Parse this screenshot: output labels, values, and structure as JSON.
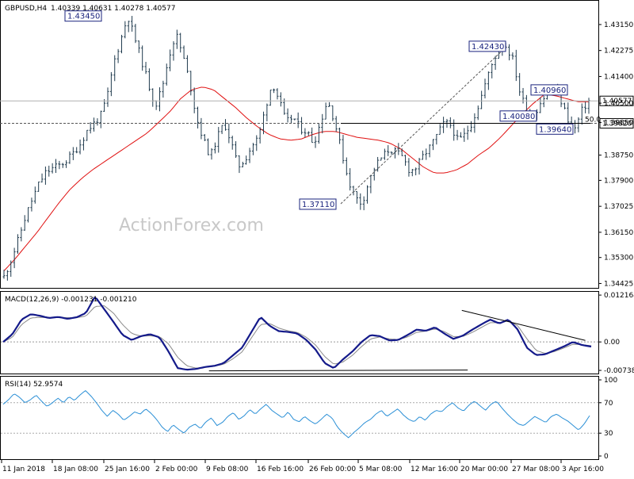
{
  "chart_data": [
    {
      "type": "candlestick",
      "title": "GBPUSD,H4",
      "ohlc_text": "1.40339 1.40631 1.40278 1.40577",
      "ylim": [
        1.3425,
        1.4395
      ],
      "y_ticks": [
        "1.43150",
        "1.42275",
        "1.41400",
        "1.40500",
        "1.39850",
        "1.38750",
        "1.37900",
        "1.37025",
        "1.36150",
        "1.35300",
        "1.34425"
      ],
      "y_tick_values": [
        1.4315,
        1.42275,
        1.414,
        1.405,
        1.3985,
        1.3875,
        1.379,
        1.37025,
        1.3615,
        1.353,
        1.34425
      ],
      "x_labels": [
        "11 Jan 2018",
        "18 Jan 08:00",
        "25 Jan 16:00",
        "2 Feb 00:00",
        "9 Feb 08:00",
        "16 Feb 16:00",
        "26 Feb 00:00",
        "5 Mar 08:00",
        "12 Mar 16:00",
        "20 Mar 00:00",
        "27 Mar 08:00",
        "3 Apr 16:00"
      ],
      "current_price": "1.40577",
      "current_price_value": 1.40577,
      "horizontal_level": "1.39820",
      "horizontal_level_value": 1.3982,
      "fib_label": "50.0",
      "annotations": [
        {
          "text": "1.43450",
          "value": 1.4345
        },
        {
          "text": "1.42430",
          "value": 1.4243
        },
        {
          "text": "1.40960",
          "value": 1.4096
        },
        {
          "text": "1.40080",
          "value": 1.4008
        },
        {
          "text": "1.39640",
          "value": 1.3964
        },
        {
          "text": "1.37110",
          "value": 1.3711
        }
      ],
      "price_path": [
        1.3465,
        1.352,
        1.3585,
        1.366,
        1.372,
        1.3775,
        1.3815,
        1.383,
        1.384,
        1.3855,
        1.388,
        1.391,
        1.3955,
        1.398,
        1.4005,
        1.407,
        1.419,
        1.4265,
        1.4345,
        1.427,
        1.4195,
        1.4115,
        1.404,
        1.4105,
        1.421,
        1.4285,
        1.421,
        1.412,
        1.4,
        1.3925,
        1.387,
        1.3935,
        1.3985,
        1.392,
        1.3835,
        1.386,
        1.3905,
        1.3935,
        1.4035,
        1.412,
        1.406,
        1.3985,
        1.4005,
        1.3965,
        1.3955,
        1.3915,
        1.3985,
        1.406,
        1.3995,
        1.3895,
        1.3795,
        1.3735,
        1.3711,
        1.3785,
        1.384,
        1.387,
        1.3895,
        1.3885,
        1.3865,
        1.382,
        1.3835,
        1.3875,
        1.3905,
        1.3945,
        1.3985,
        1.3975,
        1.392,
        1.3945,
        1.3985,
        1.4045,
        1.412,
        1.4185,
        1.424,
        1.4243,
        1.4195,
        1.4085,
        1.4025,
        1.4008,
        1.4055,
        1.4085,
        1.4096,
        1.4055,
        1.3995,
        1.3964,
        1.4025,
        1.40577
      ],
      "ma_path": [
        1.3485,
        1.3525,
        1.357,
        1.3615,
        1.3665,
        1.3715,
        1.376,
        1.3795,
        1.3825,
        1.385,
        1.3875,
        1.39,
        1.3925,
        1.395,
        1.3985,
        1.402,
        1.4065,
        1.4095,
        1.4105,
        1.4095,
        1.4065,
        1.4035,
        1.4,
        1.397,
        1.3945,
        1.393,
        1.3925,
        1.393,
        1.3945,
        1.3955,
        1.3955,
        1.3945,
        1.3935,
        1.393,
        1.3925,
        1.3915,
        1.3895,
        1.3865,
        1.3835,
        1.3815,
        1.3815,
        1.3825,
        1.3845,
        1.3875,
        1.39,
        1.3935,
        1.3975,
        1.4015,
        1.405,
        1.408,
        1.4075,
        1.4065,
        1.4055,
        1.4055
      ]
    },
    {
      "type": "line",
      "title": "MACD(12,26,9) -0.001231 -0.001210",
      "ylim": [
        -0.0082,
        0.0128
      ],
      "y_ticks": [
        "0.012164",
        "0.00",
        "-0.007384"
      ],
      "y_tick_values": [
        0.012164,
        0.0,
        -0.007384
      ],
      "macd_path": [
        0.0,
        0.002,
        0.0058,
        0.0072,
        0.0068,
        0.0062,
        0.0065,
        0.006,
        0.0064,
        0.0075,
        0.0118,
        0.0085,
        0.0052,
        0.0018,
        0.0005,
        0.0015,
        0.002,
        0.0012,
        -0.0025,
        -0.0068,
        -0.0072,
        -0.007,
        -0.0065,
        -0.0062,
        -0.0055,
        -0.0035,
        -0.0015,
        0.0025,
        0.0065,
        0.0042,
        0.0028,
        0.0026,
        0.0022,
        0.0005,
        -0.002,
        -0.0055,
        -0.0068,
        -0.0045,
        -0.0025,
        0.0,
        0.0018,
        0.0015,
        0.0004,
        0.0005,
        0.0018,
        0.0032,
        0.0029,
        0.0038,
        0.0022,
        0.0008,
        0.0016,
        0.0031,
        0.0045,
        0.0058,
        0.0048,
        0.0058,
        0.0032,
        -0.0015,
        -0.0034,
        -0.0032,
        -0.0022,
        -0.0012,
        0.0,
        -0.0008,
        -0.0012
      ],
      "signal_path": [
        0.0,
        0.0012,
        0.0045,
        0.0062,
        0.0064,
        0.0063,
        0.0064,
        0.0063,
        0.0063,
        0.0067,
        0.0092,
        0.0094,
        0.0075,
        0.0045,
        0.0022,
        0.0015,
        0.0016,
        0.0014,
        -0.0005,
        -0.004,
        -0.0062,
        -0.0068,
        -0.0066,
        -0.0063,
        -0.0058,
        -0.0044,
        -0.0026,
        0.001,
        0.0045,
        0.0048,
        0.0036,
        0.0029,
        0.0025,
        0.0012,
        -0.0008,
        -0.0038,
        -0.0058,
        -0.0052,
        -0.0035,
        -0.0012,
        0.0008,
        0.0013,
        0.0008,
        0.0006,
        0.0013,
        0.0025,
        0.0028,
        0.0034,
        0.0027,
        0.0014,
        0.0014,
        0.0024,
        0.0037,
        0.005,
        0.005,
        0.0055,
        0.0042,
        0.0008,
        -0.0022,
        -0.003,
        -0.0025,
        -0.0016,
        -0.0006,
        -0.0007,
        -0.001
      ],
      "trendlines": [
        {
          "from": [
            0.35,
            -0.0075
          ],
          "to": [
            0.79,
            -0.0073
          ]
        },
        {
          "from": [
            0.78,
            0.0082
          ],
          "to": [
            0.99,
            0.0004
          ]
        }
      ]
    },
    {
      "type": "line",
      "title": "RSI(14) 52.9574",
      "ylim": [
        0,
        100
      ],
      "y_ticks": [
        "100",
        "70",
        "30",
        "0"
      ],
      "y_tick_values": [
        100,
        70,
        30,
        0
      ],
      "levels": [
        70,
        30
      ],
      "rsi_path": [
        68,
        74,
        82,
        77,
        70,
        74,
        80,
        72,
        65,
        70,
        76,
        70,
        78,
        73,
        80,
        86,
        79,
        70,
        60,
        52,
        60,
        55,
        47,
        52,
        58,
        55,
        62,
        56,
        48,
        38,
        32,
        41,
        35,
        30,
        38,
        42,
        36,
        45,
        50,
        40,
        44,
        52,
        57,
        48,
        53,
        61,
        55,
        62,
        68,
        60,
        55,
        50,
        58,
        48,
        45,
        52,
        46,
        42,
        48,
        55,
        50,
        38,
        30,
        24,
        31,
        37,
        44,
        48,
        55,
        60,
        52,
        57,
        62,
        54,
        48,
        45,
        52,
        47,
        55,
        60,
        58,
        65,
        70,
        63,
        59,
        67,
        72,
        66,
        60,
        68,
        72,
        63,
        55,
        48,
        42,
        40,
        46,
        52,
        48,
        44,
        52,
        55,
        50,
        46,
        40,
        34,
        42,
        53
      ]
    }
  ],
  "watermark": "ActionForex.com"
}
